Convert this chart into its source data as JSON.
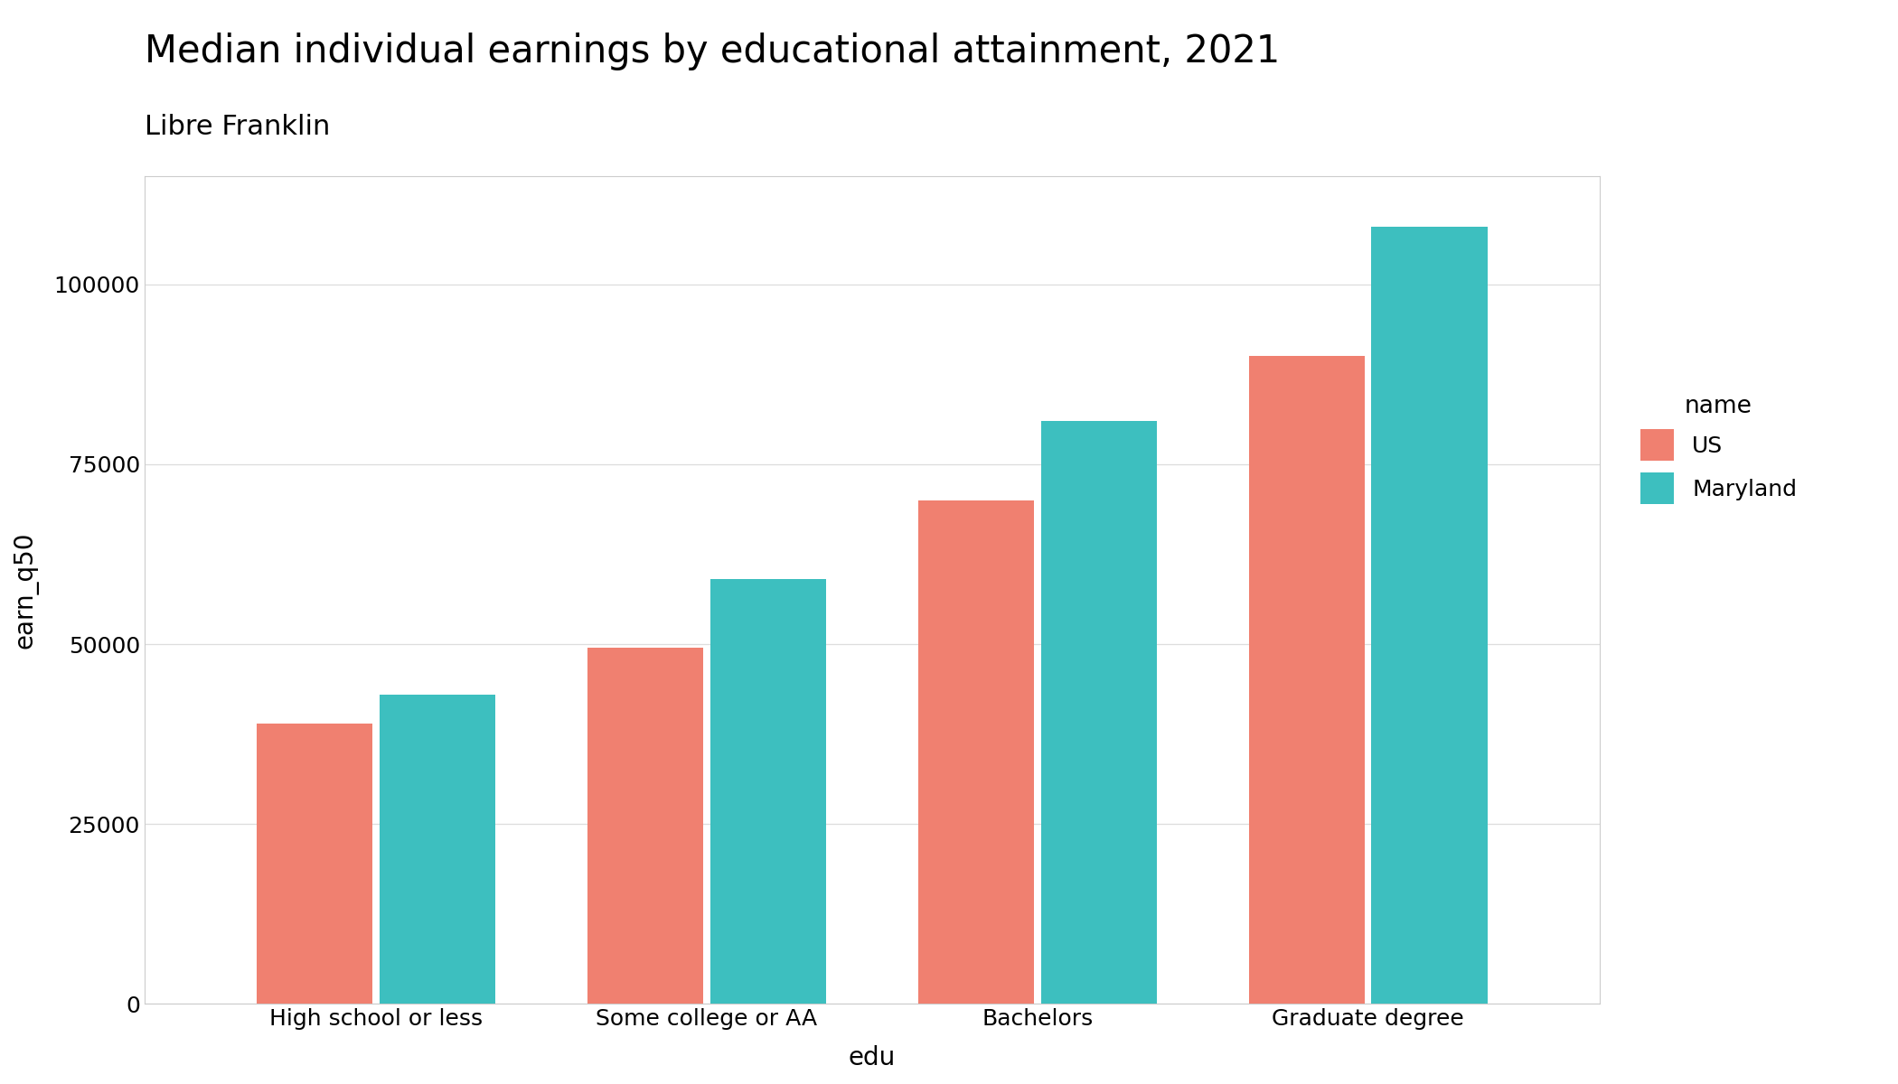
{
  "title": "Median individual earnings by educational attainment, 2021",
  "subtitle": "Libre Franklin",
  "xlabel": "edu",
  "ylabel": "earn_q50",
  "categories": [
    "High school or less",
    "Some college or AA",
    "Bachelors",
    "Graduate degree"
  ],
  "us_values": [
    39000,
    49500,
    70000,
    90000
  ],
  "maryland_values": [
    43000,
    59000,
    81000,
    108000
  ],
  "us_color": "#F08070",
  "maryland_color": "#3DBFBF",
  "legend_title": "name",
  "legend_labels": [
    "US",
    "Maryland"
  ],
  "ylim": [
    0,
    115000
  ],
  "yticks": [
    0,
    25000,
    50000,
    75000,
    100000
  ],
  "ytick_labels": [
    "0",
    "25000",
    "50000",
    "75000",
    "100000"
  ],
  "background_color": "#FFFFFF",
  "panel_background": "#FFFFFF",
  "grid_color": "#DDDDDD",
  "panel_border_color": "#CCCCCC",
  "title_fontsize": 30,
  "subtitle_fontsize": 22,
  "axis_label_fontsize": 20,
  "tick_fontsize": 18,
  "legend_fontsize": 18,
  "legend_title_fontsize": 19,
  "bar_width": 0.35,
  "bar_gap": 0.02
}
